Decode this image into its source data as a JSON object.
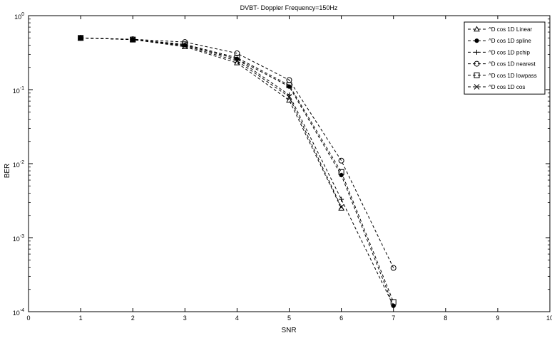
{
  "chart_data": {
    "type": "line",
    "title": "DVBT- Doppler Frequency=150Hz",
    "xlabel": "SNR",
    "ylabel": "BER",
    "xlim": [
      0,
      10
    ],
    "ylim": [
      0.0001,
      1
    ],
    "yscale": "log",
    "grid": false,
    "legend_position": "top-right",
    "x_ticks": [
      "0",
      "1",
      "2",
      "3",
      "4",
      "5",
      "6",
      "7",
      "8",
      "9",
      "10"
    ],
    "y_ticks": [
      {
        "base": "10",
        "exp": "0"
      },
      {
        "base": "10",
        "exp": "-1"
      },
      {
        "base": "10",
        "exp": "-2"
      },
      {
        "base": "10",
        "exp": "-3"
      },
      {
        "base": "10",
        "exp": "-4"
      }
    ],
    "series": [
      {
        "name": "^D cos 1D Linear",
        "marker": "triangle",
        "x": [
          1,
          2,
          3,
          4,
          5,
          6
        ],
        "y": [
          0.5,
          0.475,
          0.38,
          0.23,
          0.072,
          0.0025
        ]
      },
      {
        "name": "^D cos 1D spline",
        "marker": "dot",
        "x": [
          1,
          2,
          3,
          4,
          5,
          6,
          7
        ],
        "y": [
          0.5,
          0.475,
          0.4,
          0.26,
          0.11,
          0.007,
          0.00012
        ]
      },
      {
        "name": "^D cos 1D pchip",
        "marker": "plus",
        "x": [
          1,
          2,
          3,
          4,
          5,
          6,
          7
        ],
        "y": [
          0.5,
          0.475,
          0.4,
          0.26,
          0.085,
          0.0033,
          0.00012
        ]
      },
      {
        "name": "^D cos 1D nearest",
        "marker": "circle",
        "x": [
          1,
          2,
          3,
          4,
          5,
          6,
          7
        ],
        "y": [
          0.5,
          0.48,
          0.44,
          0.31,
          0.135,
          0.011,
          0.00039
        ]
      },
      {
        "name": "^D cos 1D lowpass",
        "marker": "square",
        "x": [
          1,
          2,
          3,
          4,
          5,
          6,
          7
        ],
        "y": [
          0.5,
          0.475,
          0.41,
          0.27,
          0.115,
          0.0077,
          0.000135
        ]
      },
      {
        "name": "^D cos 1D cos",
        "marker": "x",
        "x": [
          1,
          2,
          3,
          4,
          5,
          6
        ],
        "y": [
          0.5,
          0.475,
          0.39,
          0.245,
          0.08,
          0.0026
        ]
      }
    ]
  }
}
